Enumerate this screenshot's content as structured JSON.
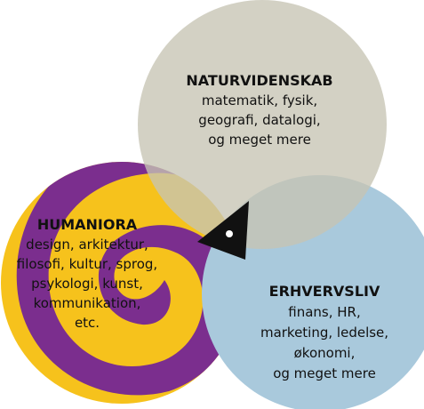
{
  "circles": [
    {
      "title": "NATURVIDENSKAB",
      "lines": [
        "matematik, fysik,",
        "geografi, datalogi,",
        "og meget mere"
      ]
    },
    {
      "title": "HUMANIORA",
      "lines": [
        "design, arkitektur,",
        "filosofi, kultur, sprog,",
        "psykologi, kunst,",
        "kommunikation,",
        "etc."
      ]
    },
    {
      "title": "ERHVERVSLIV",
      "lines": [
        "finans, HR,",
        "marketing, ledelse,",
        "økonomi,",
        "og meget mere"
      ]
    }
  ]
}
